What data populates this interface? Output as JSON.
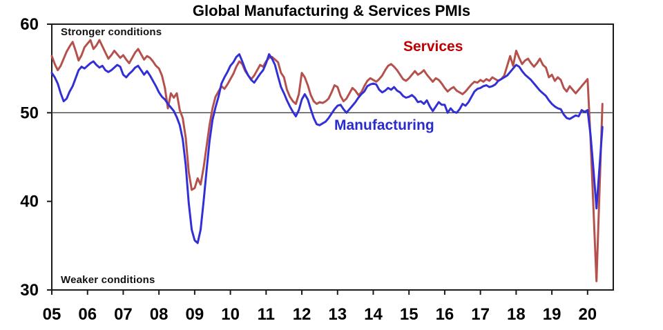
{
  "title": "Global Manufacturing & Services PMIs",
  "annotations": {
    "top_left": "Stronger conditions",
    "bottom_left": "Weaker conditions"
  },
  "series_labels": {
    "services": "Services",
    "manufacturing": "Manufacturing"
  },
  "colors": {
    "services_line": "#B5514D",
    "manufacturing_line": "#3230D4",
    "services_label": "#C00000",
    "manufacturing_label": "#2B2BCC",
    "reference_line": "#404040",
    "frame": "#1a1a1a"
  },
  "chart_data": {
    "type": "line",
    "title": "Global Manufacturing & Services PMIs",
    "frequency": "monthly",
    "x_start": "2005-01",
    "x_end": "2020-06",
    "x_tick_labels": [
      "05",
      "06",
      "07",
      "08",
      "09",
      "10",
      "11",
      "12",
      "13",
      "14",
      "15",
      "16",
      "17",
      "18",
      "19",
      "20"
    ],
    "y_ticks": [
      60,
      50,
      40,
      30
    ],
    "ylim": [
      30,
      60
    ],
    "reference_line": 50,
    "grid": false,
    "legend_position": "inline-labels",
    "annotations": [
      "Stronger conditions",
      "Weaker conditions"
    ],
    "series": [
      {
        "name": "Services",
        "color": "#B5514D",
        "values": [
          56.4,
          55.5,
          54.8,
          55.3,
          56.1,
          56.9,
          57.5,
          58.0,
          57.0,
          55.9,
          56.5,
          57.4,
          57.8,
          58.2,
          57.2,
          57.6,
          58.2,
          57.5,
          56.8,
          56.1,
          56.5,
          57.0,
          56.6,
          56.2,
          56.5,
          56.0,
          55.6,
          56.2,
          56.8,
          57.2,
          56.6,
          56.0,
          56.4,
          56.2,
          55.8,
          55.3,
          55.0,
          54.2,
          52.8,
          50.5,
          52.2,
          51.7,
          52.2,
          50.3,
          49.4,
          47.2,
          43.3,
          41.3,
          41.5,
          42.6,
          41.9,
          43.8,
          46.2,
          48.6,
          50.5,
          51.8,
          52.4,
          53.0,
          52.7,
          53.2,
          53.8,
          54.4,
          55.2,
          55.8,
          55.5,
          54.7,
          54.2,
          53.8,
          54.2,
          54.8,
          55.4,
          55.2,
          55.8,
          56.2,
          56.3,
          56.0,
          55.7,
          54.5,
          54.0,
          52.6,
          51.8,
          51.3,
          51.0,
          52.1,
          54.5,
          54.0,
          53.1,
          52.0,
          51.3,
          51.0,
          51.2,
          51.1,
          51.3,
          51.6,
          52.3,
          53.1,
          52.9,
          51.9,
          51.3,
          51.6,
          52.2,
          52.8,
          52.5,
          52.0,
          52.3,
          53.0,
          53.6,
          53.9,
          53.7,
          53.5,
          53.8,
          54.2,
          54.8,
          55.3,
          55.5,
          55.2,
          54.8,
          54.3,
          53.8,
          53.6,
          53.9,
          54.3,
          54.7,
          54.3,
          54.5,
          54.8,
          54.3,
          53.9,
          53.5,
          53.9,
          53.7,
          53.3,
          52.8,
          52.4,
          52.7,
          52.9,
          52.5,
          52.3,
          52.1,
          52.4,
          52.8,
          53.2,
          53.5,
          53.4,
          53.7,
          53.5,
          53.8,
          53.6,
          54.0,
          53.8,
          53.6,
          53.8,
          54.2,
          55.3,
          56.4,
          55.3,
          57.0,
          56.2,
          55.5,
          55.9,
          56.1,
          55.6,
          55.2,
          55.6,
          56.1,
          55.4,
          55.1,
          54.0,
          54.3,
          53.6,
          54.0,
          53.7,
          52.8,
          52.4,
          53.0,
          52.6,
          52.2,
          52.6,
          53.0,
          53.4,
          53.8,
          47.0,
          39.0,
          31.0,
          41.0,
          51.0
        ]
      },
      {
        "name": "Manufacturing",
        "color": "#3230D4",
        "values": [
          54.5,
          54.0,
          53.3,
          52.2,
          51.3,
          51.6,
          52.4,
          53.0,
          53.9,
          54.8,
          55.2,
          55.0,
          55.3,
          55.6,
          55.8,
          55.4,
          55.1,
          55.3,
          54.8,
          54.6,
          54.8,
          55.1,
          55.4,
          55.2,
          54.3,
          54.0,
          54.4,
          54.7,
          55.1,
          55.3,
          54.8,
          54.3,
          54.7,
          54.2,
          53.6,
          53.0,
          52.3,
          51.8,
          51.5,
          51.0,
          50.6,
          50.2,
          49.5,
          48.6,
          47.0,
          44.1,
          39.8,
          36.8,
          35.6,
          35.3,
          36.8,
          40.0,
          43.5,
          46.8,
          49.2,
          50.6,
          51.8,
          53.3,
          54.0,
          54.6,
          55.3,
          55.7,
          56.3,
          56.6,
          55.8,
          54.9,
          54.2,
          53.7,
          53.4,
          53.9,
          54.4,
          54.8,
          55.6,
          56.6,
          56.1,
          55.4,
          54.1,
          52.9,
          52.2,
          51.4,
          50.7,
          50.1,
          49.6,
          50.3,
          51.5,
          52.1,
          51.5,
          50.4,
          49.4,
          48.7,
          48.6,
          48.8,
          49.0,
          49.4,
          49.9,
          50.4,
          50.8,
          50.9,
          50.4,
          50.0,
          50.4,
          50.8,
          51.2,
          51.7,
          52.1,
          52.4,
          53.0,
          53.2,
          53.3,
          53.2,
          52.6,
          52.3,
          52.5,
          52.8,
          52.6,
          52.9,
          52.5,
          52.3,
          51.9,
          51.7,
          51.8,
          52.0,
          51.7,
          51.2,
          51.3,
          51.0,
          51.4,
          50.7,
          50.2,
          50.7,
          51.2,
          50.9,
          50.9,
          50.0,
          50.5,
          50.1,
          50.0,
          50.4,
          51.0,
          50.8,
          51.2,
          51.8,
          52.4,
          52.7,
          52.8,
          53.0,
          53.1,
          52.9,
          53.0,
          53.2,
          53.6,
          53.8,
          54.0,
          54.2,
          54.6,
          55.0,
          55.4,
          55.2,
          54.7,
          54.3,
          54.0,
          53.7,
          53.3,
          52.9,
          52.5,
          52.2,
          51.9,
          51.4,
          51.0,
          50.7,
          50.5,
          50.4,
          49.8,
          49.4,
          49.3,
          49.5,
          49.7,
          49.6,
          50.3,
          50.1,
          50.3,
          47.5,
          43.5,
          39.2,
          43.8,
          48.4
        ]
      }
    ]
  }
}
